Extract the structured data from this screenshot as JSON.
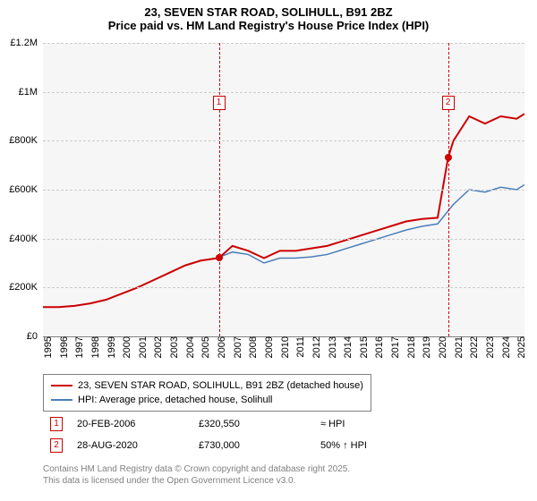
{
  "title": {
    "line1": "23, SEVEN STAR ROAD, SOLIHULL, B91 2BZ",
    "line2": "Price paid vs. HM Land Registry's House Price Index (HPI)"
  },
  "chart": {
    "type": "line",
    "background_color": "#f6f6f6",
    "grid_color": "#cccccc",
    "y": {
      "min": 0,
      "max": 1200000,
      "ticks": [
        0,
        200000,
        400000,
        600000,
        800000,
        1000000,
        1200000
      ],
      "labels": [
        "£0",
        "£200K",
        "£400K",
        "£600K",
        "£800K",
        "£1M",
        "£1.2M"
      ]
    },
    "x": {
      "min": 1995,
      "max": 2025.5,
      "ticks": [
        1995,
        1996,
        1997,
        1998,
        1999,
        2000,
        2001,
        2002,
        2003,
        2004,
        2005,
        2006,
        2007,
        2008,
        2009,
        2010,
        2011,
        2012,
        2013,
        2014,
        2015,
        2016,
        2017,
        2018,
        2019,
        2020,
        2021,
        2022,
        2023,
        2024,
        2025
      ]
    },
    "series": [
      {
        "id": "price_paid",
        "label": "23, SEVEN STAR ROAD, SOLIHULL, B91 2BZ (detached house)",
        "color": "#cc0000",
        "width": 2,
        "x": [
          1995,
          1996,
          1997,
          1998,
          1999,
          2000,
          2001,
          2002,
          2003,
          2004,
          2005,
          2006.14,
          2007,
          2008,
          2009,
          2010,
          2011,
          2012,
          2013,
          2014,
          2015,
          2016,
          2017,
          2018,
          2019,
          2020,
          2020.66,
          2021,
          2022,
          2023,
          2024,
          2025,
          2025.5
        ],
        "y": [
          120000,
          120000,
          125000,
          135000,
          150000,
          175000,
          200000,
          230000,
          260000,
          290000,
          310000,
          320550,
          370000,
          350000,
          320000,
          350000,
          350000,
          360000,
          370000,
          390000,
          410000,
          430000,
          450000,
          470000,
          480000,
          485000,
          730000,
          800000,
          900000,
          870000,
          900000,
          890000,
          910000
        ]
      },
      {
        "id": "hpi",
        "label": "HPI: Average price, detached house, Solihull",
        "color": "#4a7ebb",
        "width": 1.5,
        "x": [
          1995,
          1996,
          1997,
          1998,
          1999,
          2000,
          2001,
          2002,
          2003,
          2004,
          2005,
          2006,
          2007,
          2008,
          2009,
          2010,
          2011,
          2012,
          2013,
          2014,
          2015,
          2016,
          2017,
          2018,
          2019,
          2020,
          2021,
          2022,
          2023,
          2024,
          2025,
          2025.5
        ],
        "y": [
          120000,
          120000,
          125000,
          135000,
          150000,
          175000,
          200000,
          230000,
          260000,
          290000,
          310000,
          320000,
          345000,
          335000,
          300000,
          320000,
          320000,
          325000,
          335000,
          355000,
          375000,
          395000,
          415000,
          435000,
          450000,
          460000,
          540000,
          600000,
          590000,
          610000,
          600000,
          620000
        ]
      }
    ],
    "vlines": [
      {
        "x": 2006.14,
        "label": "1",
        "color": "#cc0000"
      },
      {
        "x": 2020.66,
        "label": "2",
        "color": "#cc0000"
      }
    ],
    "markers": [
      {
        "series": "price_paid",
        "x": 2006.14,
        "y": 320550
      },
      {
        "series": "price_paid",
        "x": 2020.66,
        "y": 730000
      }
    ]
  },
  "legend": {
    "items": [
      {
        "color": "#cc0000",
        "label": "23, SEVEN STAR ROAD, SOLIHULL, B91 2BZ (detached house)"
      },
      {
        "color": "#4a7ebb",
        "label": "HPI: Average price, detached house, Solihull"
      }
    ]
  },
  "events": [
    {
      "num": "1",
      "date": "20-FEB-2006",
      "price": "£320,550",
      "delta": "≈ HPI"
    },
    {
      "num": "2",
      "date": "28-AUG-2020",
      "price": "£730,000",
      "delta": "50% ↑ HPI"
    }
  ],
  "footer": {
    "line1": "Contains HM Land Registry data © Crown copyright and database right 2025.",
    "line2": "This data is licensed under the Open Government Licence v3.0."
  }
}
